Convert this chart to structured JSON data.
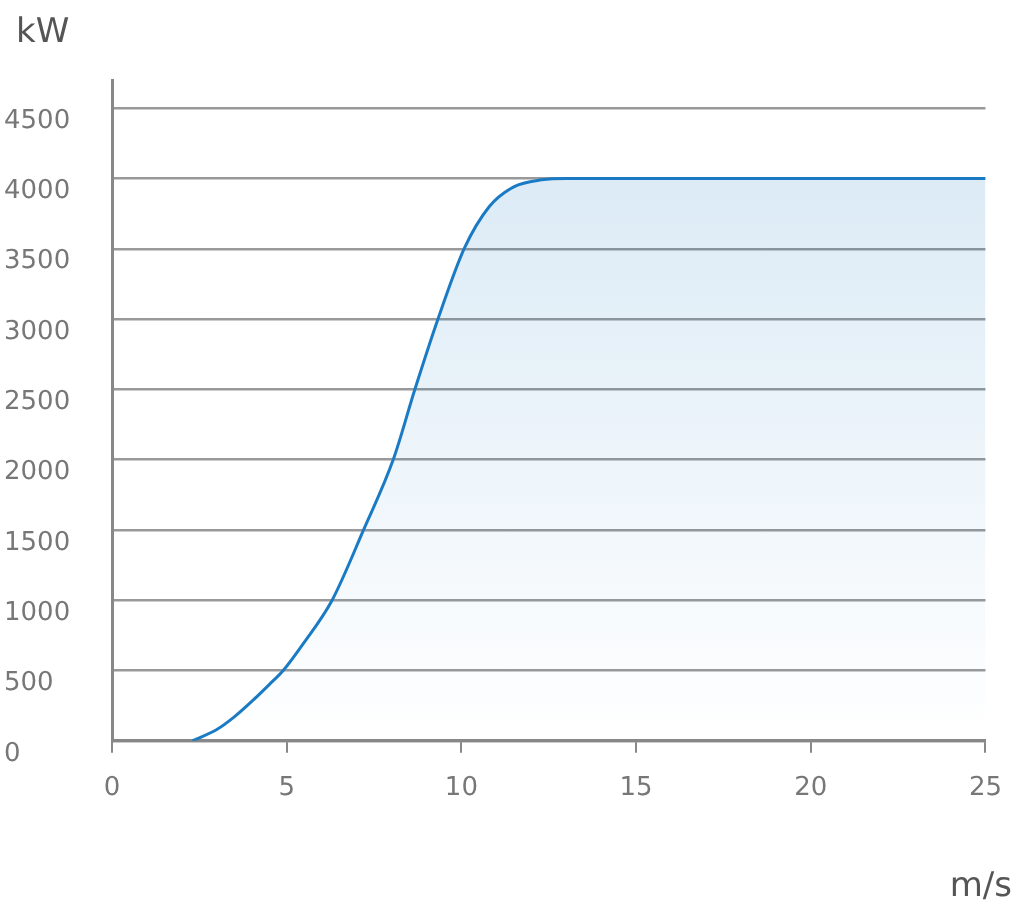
{
  "chart_data": {
    "type": "area",
    "xlabel": "m/s",
    "ylabel": "kW",
    "series": [
      {
        "color": "#1a7bc4",
        "x": [
          2.3,
          3,
          3.5,
          4,
          4.5,
          4.9,
          5.5,
          6.3,
          7.2,
          8.05,
          8.67,
          9.33,
          10.08,
          10.8,
          11.5,
          12.3,
          13,
          15,
          20,
          25
        ],
        "values": [
          0,
          80,
          170,
          280,
          400,
          500,
          700,
          1000,
          1500,
          2000,
          2500,
          3000,
          3500,
          3800,
          3940,
          3990,
          4000,
          4000,
          4000,
          4000
        ]
      }
    ],
    "xlim": [
      0,
      25
    ],
    "xticks": [
      0,
      5,
      10,
      15,
      20,
      25
    ],
    "ylim": [
      0,
      4700
    ],
    "yticks": [
      0,
      500,
      1000,
      1500,
      2000,
      2500,
      3000,
      3500,
      4000,
      4500
    ],
    "grid": "y",
    "legend": false,
    "marker": "none",
    "line_style": "solid"
  }
}
